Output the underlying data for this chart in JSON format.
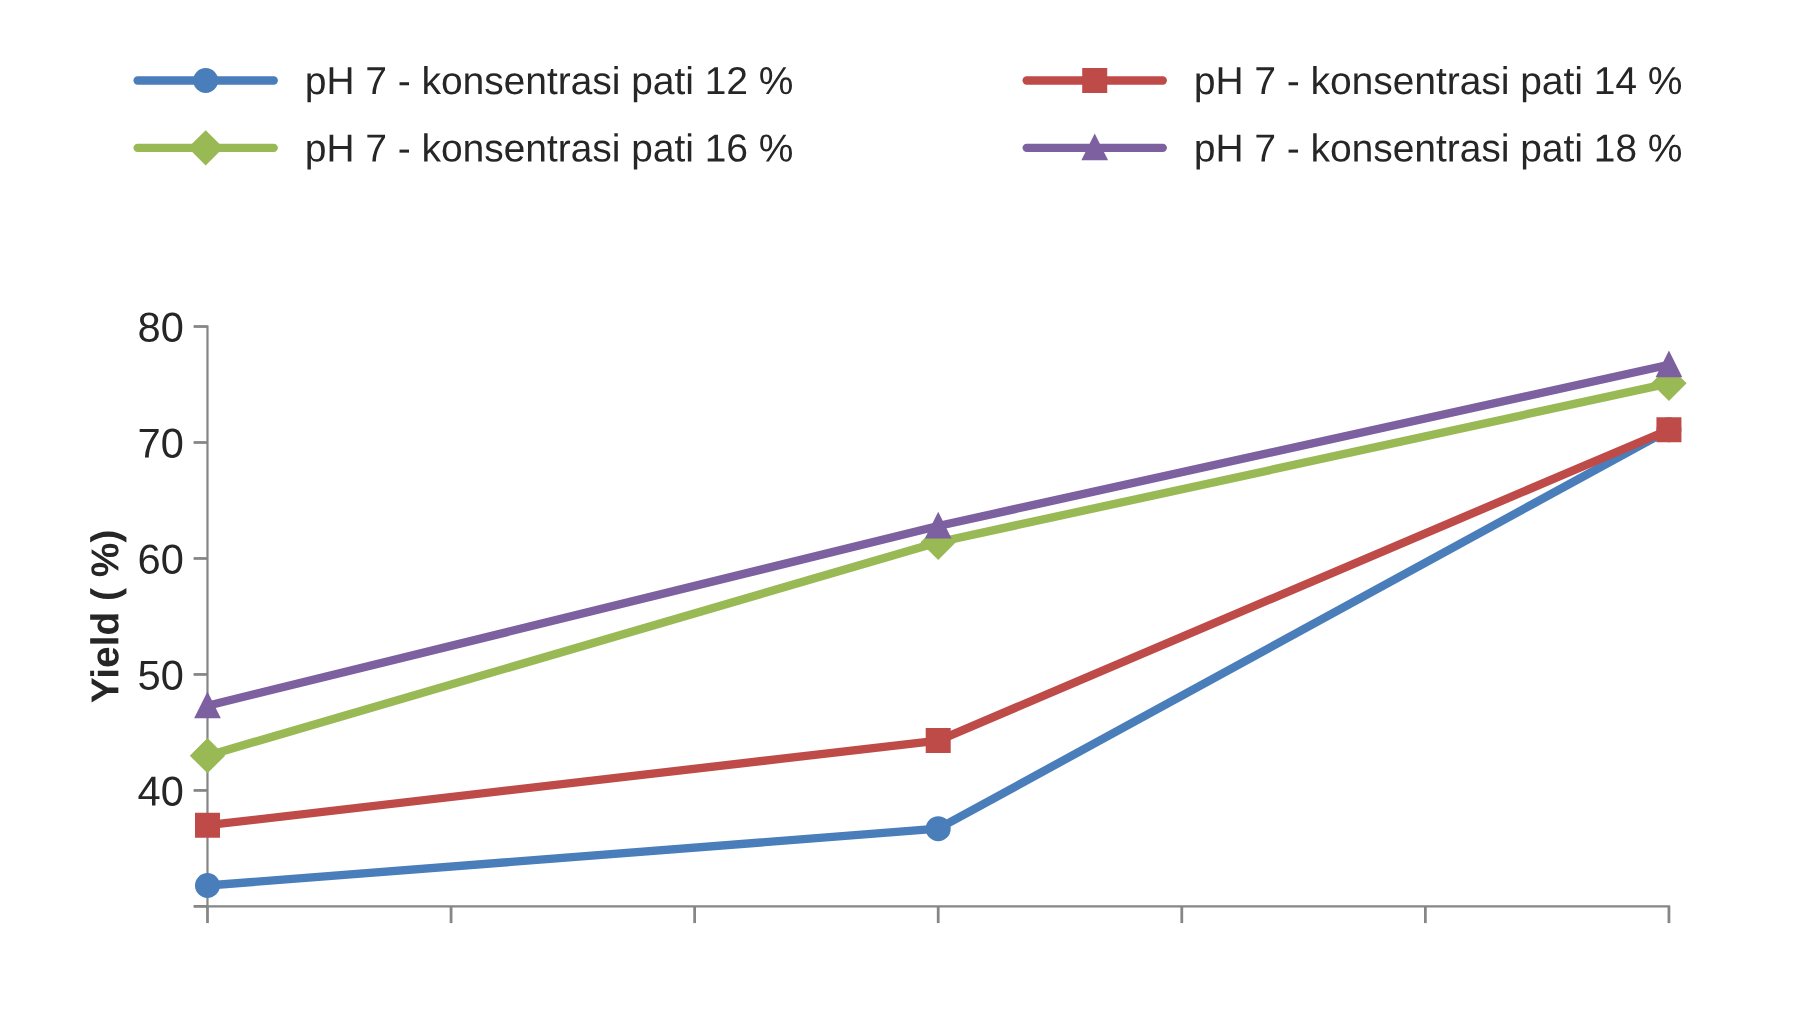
{
  "chart_data": {
    "type": "line",
    "ylabel": "Yield ( %)",
    "categories": [
      null,
      null,
      null
    ],
    "ylim": [
      30,
      80
    ],
    "yticks": [
      {
        "value": 30,
        "label": null
      },
      40,
      50,
      60,
      70,
      80
    ],
    "tick_labels": "y",
    "grid": false,
    "legend": "top",
    "line_style": "solid",
    "series": [
      {
        "name": "pH 7 - konsentrasi pati 12 %",
        "color": "#4a7ebb",
        "marker": "circle",
        "values": [
          31.8,
          36.7,
          71.1
        ]
      },
      {
        "name": "pH 7 - konsentrasi pati 14 %",
        "color": "#be4b48",
        "marker": "square",
        "values": [
          37.0,
          44.3,
          71.1
        ]
      },
      {
        "name": "pH 7 - konsentrasi pati 16 %",
        "color": "#98b954",
        "marker": "diamond",
        "values": [
          43.0,
          61.4,
          75.1
        ]
      },
      {
        "name": "pH 7 - konsentrasi pati 18 %",
        "color": "#7d60a0",
        "marker": "triangle",
        "values": [
          47.3,
          62.8,
          76.7
        ]
      }
    ]
  }
}
